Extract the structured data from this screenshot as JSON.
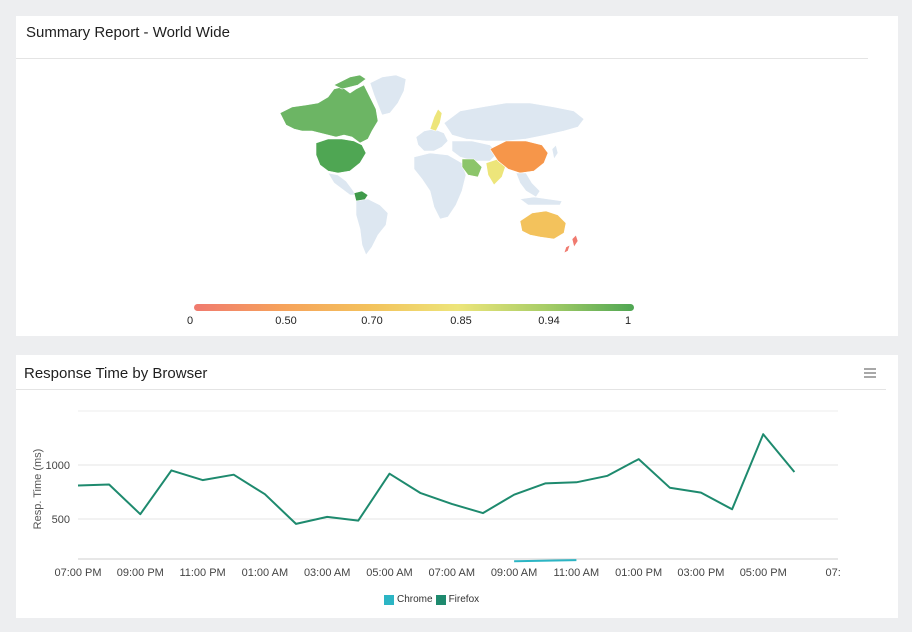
{
  "summary_panel": {
    "title": "Summary Report - World Wide",
    "legend": {
      "ticks": [
        "0",
        "0.50",
        "0.70",
        "0.85",
        "0.94",
        "1"
      ],
      "gradient_colors": [
        "#f07a6f",
        "#f6a25b",
        "#f3c25c",
        "#ede57a",
        "#a7cd67",
        "#4fa653"
      ]
    },
    "colors": {
      "default_country": "#dde7f1",
      "canada": "#6cb564",
      "usa": "#4fa653",
      "greenland": "#dde7f1",
      "venezuela": "#3f9a4a",
      "scandinavia": "#ede57a",
      "middle_east": "#8cc56a",
      "india": "#ede57a",
      "china": "#f6964a",
      "australia": "#f3c25c",
      "new_zealand": "#f07a6f"
    }
  },
  "chart_panel": {
    "title": "Response Time by Browser",
    "menu_icon": "hamburger-menu-icon",
    "chart_data": {
      "type": "line",
      "title": "Response Time by Browser",
      "xlabel": "",
      "ylabel": "Resp. Time (ms)",
      "x_tick_labels": [
        "07:00 PM",
        "09:00 PM",
        "11:00 PM",
        "01:00 AM",
        "03:00 AM",
        "05:00 AM",
        "07:00 AM",
        "09:00 AM",
        "11:00 AM",
        "01:00 PM",
        "03:00 PM",
        "05:00 PM",
        "07:"
      ],
      "y_ticks": [
        500,
        1000
      ],
      "ylim": [
        130,
        1500
      ],
      "x_hours_range": [
        0,
        24.4
      ],
      "grid": true,
      "legend_position": "bottom-center",
      "series": [
        {
          "name": "Chrome",
          "color": "#2cb5c4",
          "x_hours": [
            14,
            16
          ],
          "values": [
            110,
            120
          ]
        },
        {
          "name": "Firefox",
          "color": "#1e8a6e",
          "x_hours": [
            0,
            1,
            2,
            3,
            4,
            5,
            6,
            7,
            8,
            9,
            10,
            11,
            12,
            13,
            14,
            15,
            16,
            17,
            18,
            19,
            20,
            21,
            22,
            23
          ],
          "values": [
            810,
            820,
            545,
            950,
            860,
            910,
            730,
            455,
            520,
            485,
            920,
            740,
            640,
            555,
            725,
            830,
            840,
            900,
            1055,
            790,
            745,
            590,
            1285,
            935
          ]
        }
      ]
    }
  }
}
